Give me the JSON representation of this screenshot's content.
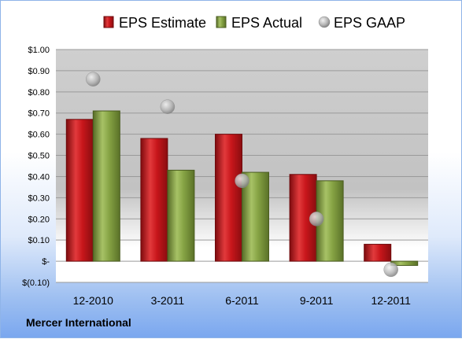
{
  "company": "Mercer International",
  "colors": {
    "estimate": "#c8161b",
    "actual": "#7f9b3d",
    "gaap": "#a8a8a8",
    "plot_background": "#c7c7c7"
  },
  "chart_data": {
    "type": "bar",
    "title": "",
    "xlabel": "",
    "ylabel": "",
    "ylim": [
      -0.1,
      1.0
    ],
    "y_tick_values": [
      -0.1,
      0.0,
      0.1,
      0.2,
      0.3,
      0.4,
      0.5,
      0.6,
      0.7,
      0.8,
      0.9,
      1.0
    ],
    "y_tick_labels": [
      "$(0.10)",
      "$-",
      "$0.10",
      "$0.20",
      "$0.30",
      "$0.40",
      "$0.50",
      "$0.60",
      "$0.70",
      "$0.80",
      "$0.90",
      "$1.00"
    ],
    "categories": [
      "12-2010",
      "3-2011",
      "6-2011",
      "9-2011",
      "12-2011"
    ],
    "legend_position": "top",
    "grid": true,
    "series": [
      {
        "name": "EPS Estimate",
        "kind": "bar",
        "values": [
          0.67,
          0.58,
          0.6,
          0.41,
          0.08
        ]
      },
      {
        "name": "EPS Actual",
        "kind": "bar",
        "values": [
          0.71,
          0.43,
          0.42,
          0.38,
          -0.02
        ]
      },
      {
        "name": "EPS GAAP",
        "kind": "marker",
        "values": [
          0.86,
          0.73,
          0.38,
          0.2,
          -0.04
        ]
      }
    ]
  }
}
